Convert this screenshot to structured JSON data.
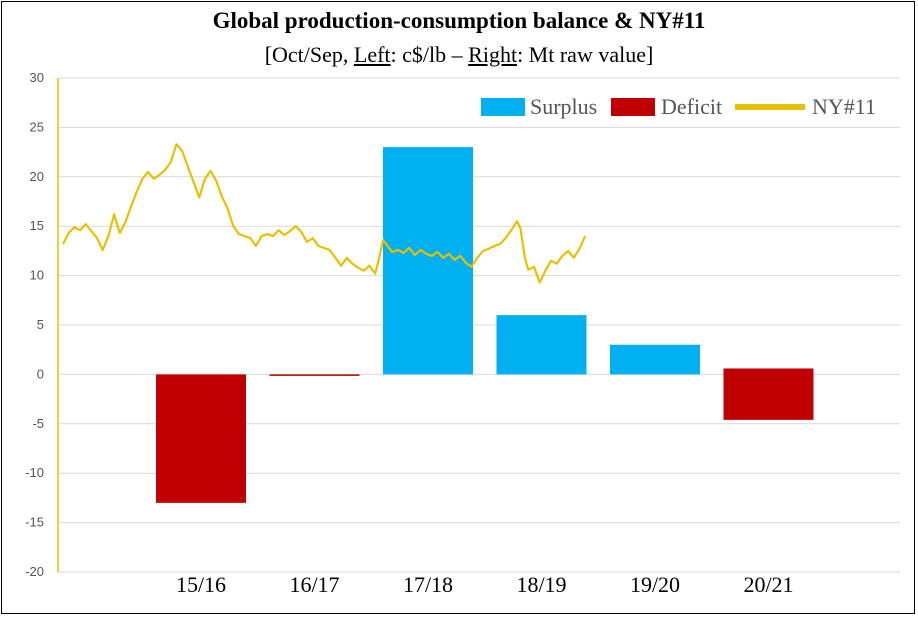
{
  "chart_data": {
    "type": "bar",
    "title": "Global production-consumption balance & NY#11",
    "subtitle_parts": [
      "[Oct/Sep, ",
      "Left",
      ": c$/lb – ",
      "Right",
      ": Mt raw value]"
    ],
    "categories": [
      "15/16",
      "16/17",
      "17/18",
      "18/19",
      "19/20",
      "20/21"
    ],
    "series": [
      {
        "name": "Surplus",
        "color": "#00B0F0",
        "values": [
          null,
          null,
          23,
          6,
          3,
          null
        ]
      },
      {
        "name": "Deficit",
        "color": "#C00000",
        "values": [
          -13,
          -0.1,
          null,
          null,
          null,
          -4.6
        ],
        "ranges": [
          [
            -13,
            0
          ],
          [
            -0.1,
            0
          ],
          null,
          null,
          null,
          [
            -4.6,
            0.6
          ]
        ]
      },
      {
        "name": "NY#11",
        "color": "#E8C000",
        "type": "line",
        "points": [
          [
            0.0,
            13.2
          ],
          [
            0.05,
            14.3
          ],
          [
            0.1,
            14.9
          ],
          [
            0.15,
            14.6
          ],
          [
            0.2,
            15.2
          ],
          [
            0.25,
            14.5
          ],
          [
            0.3,
            13.8
          ],
          [
            0.35,
            12.6
          ],
          [
            0.4,
            14.0
          ],
          [
            0.45,
            16.2
          ],
          [
            0.5,
            14.3
          ],
          [
            0.55,
            15.4
          ],
          [
            0.6,
            17.0
          ],
          [
            0.65,
            18.5
          ],
          [
            0.7,
            19.8
          ],
          [
            0.75,
            20.5
          ],
          [
            0.8,
            19.8
          ],
          [
            0.85,
            20.2
          ],
          [
            0.9,
            20.7
          ],
          [
            0.95,
            21.5
          ],
          [
            1.0,
            23.3
          ],
          [
            1.05,
            22.6
          ],
          [
            1.1,
            21.0
          ],
          [
            1.15,
            19.5
          ],
          [
            1.2,
            17.9
          ],
          [
            1.25,
            19.8
          ],
          [
            1.3,
            20.6
          ],
          [
            1.35,
            19.6
          ],
          [
            1.4,
            18.0
          ],
          [
            1.45,
            16.8
          ],
          [
            1.5,
            15.0
          ],
          [
            1.55,
            14.2
          ],
          [
            1.6,
            14.0
          ],
          [
            1.65,
            13.8
          ],
          [
            1.7,
            13.0
          ],
          [
            1.75,
            14.0
          ],
          [
            1.8,
            14.2
          ],
          [
            1.85,
            14.0
          ],
          [
            1.9,
            14.6
          ],
          [
            1.95,
            14.1
          ],
          [
            2.0,
            14.5
          ],
          [
            2.05,
            15.0
          ],
          [
            2.1,
            14.4
          ],
          [
            2.15,
            13.4
          ],
          [
            2.2,
            13.8
          ],
          [
            2.25,
            13.0
          ],
          [
            2.3,
            12.8
          ],
          [
            2.35,
            12.6
          ],
          [
            2.4,
            11.8
          ],
          [
            2.45,
            11.0
          ],
          [
            2.5,
            11.8
          ],
          [
            2.55,
            11.2
          ],
          [
            2.6,
            10.8
          ],
          [
            2.65,
            10.5
          ],
          [
            2.7,
            11.0
          ],
          [
            2.75,
            10.2
          ],
          [
            2.78,
            11.5
          ],
          [
            2.82,
            13.6
          ],
          [
            2.86,
            13.0
          ],
          [
            2.9,
            12.4
          ],
          [
            2.95,
            12.6
          ],
          [
            3.0,
            12.3
          ],
          [
            3.05,
            12.8
          ],
          [
            3.1,
            12.1
          ],
          [
            3.15,
            12.6
          ],
          [
            3.2,
            12.2
          ],
          [
            3.25,
            12.0
          ],
          [
            3.3,
            12.4
          ],
          [
            3.35,
            11.8
          ],
          [
            3.4,
            12.2
          ],
          [
            3.45,
            11.6
          ],
          [
            3.5,
            12.0
          ],
          [
            3.55,
            11.3
          ],
          [
            3.6,
            10.9
          ],
          [
            3.65,
            11.8
          ],
          [
            3.7,
            12.5
          ],
          [
            3.75,
            12.7
          ],
          [
            3.8,
            13.0
          ],
          [
            3.85,
            13.2
          ],
          [
            3.9,
            13.8
          ],
          [
            3.95,
            14.6
          ],
          [
            4.0,
            15.5
          ],
          [
            4.03,
            14.8
          ],
          [
            4.07,
            11.8
          ],
          [
            4.1,
            10.6
          ],
          [
            4.15,
            10.9
          ],
          [
            4.2,
            9.3
          ],
          [
            4.25,
            10.5
          ],
          [
            4.3,
            11.5
          ],
          [
            4.35,
            11.2
          ],
          [
            4.4,
            12.0
          ],
          [
            4.45,
            12.5
          ],
          [
            4.5,
            11.8
          ],
          [
            4.55,
            12.7
          ],
          [
            4.6,
            14.0
          ]
        ]
      }
    ],
    "ylim": [
      -20,
      30
    ],
    "yticks": [
      -20,
      -15,
      -10,
      -5,
      0,
      5,
      10,
      15,
      20,
      25,
      30
    ],
    "grid": true,
    "legend_position": "top-right"
  }
}
